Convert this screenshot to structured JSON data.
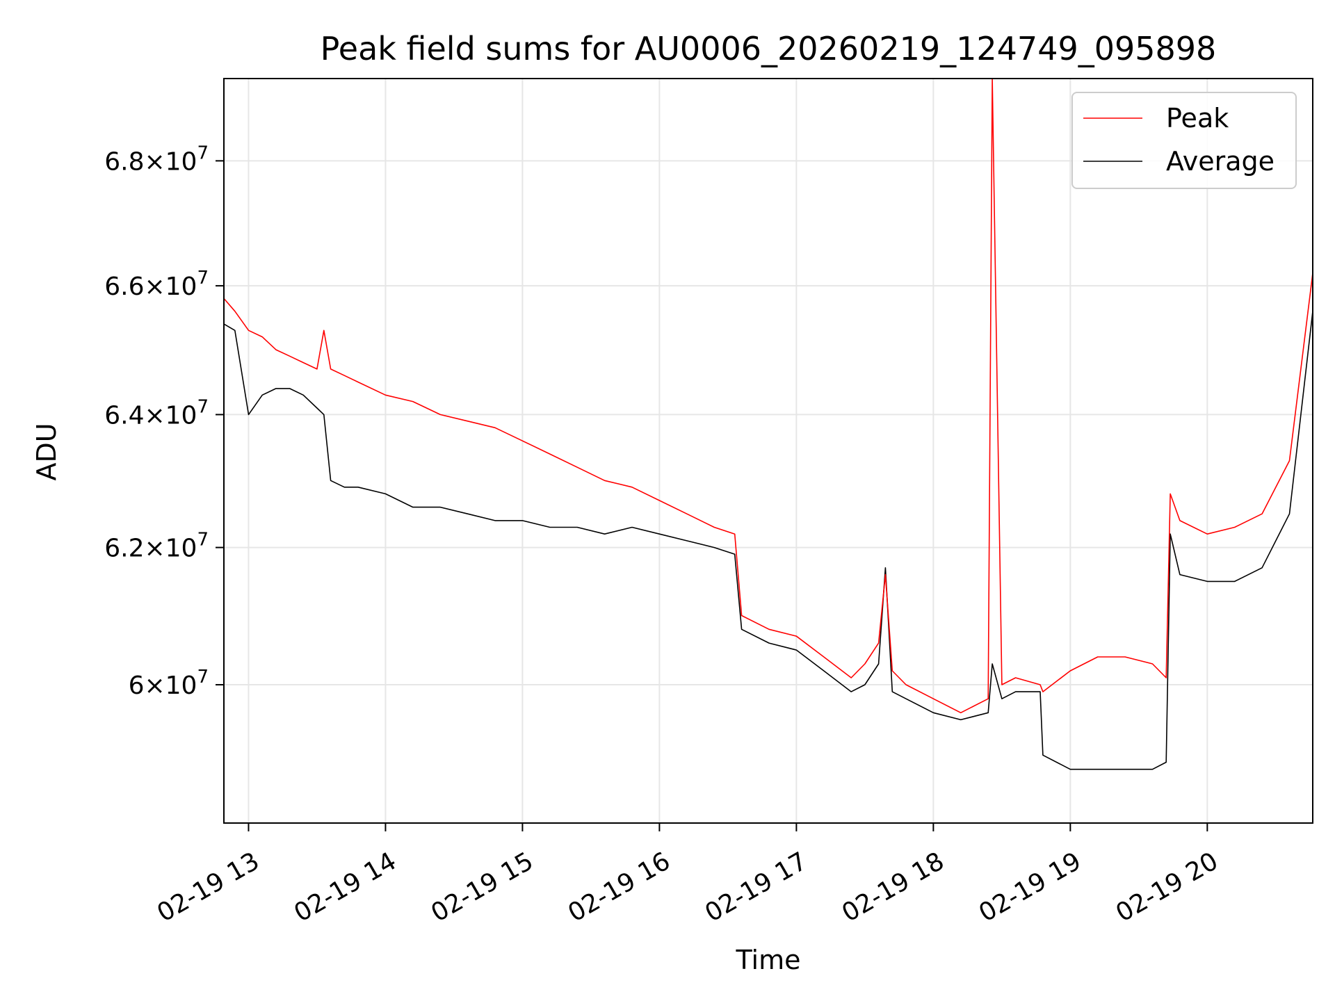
{
  "chart_data": {
    "type": "line",
    "title": "Peak field sums for AU0006_20260219_124749_095898",
    "xlabel": "Time",
    "ylabel": "ADU",
    "xlim": [
      12.82,
      20.77
    ],
    "ylim": [
      58.05,
      69.35
    ],
    "y_scale": "log",
    "grid": true,
    "legend_position": "top-right",
    "xticks": [
      {
        "value": 13,
        "label": "02-19 13"
      },
      {
        "value": 14,
        "label": "02-19 14"
      },
      {
        "value": 15,
        "label": "02-19 15"
      },
      {
        "value": 16,
        "label": "02-19 16"
      },
      {
        "value": 17,
        "label": "02-19 17"
      },
      {
        "value": 18,
        "label": "02-19 18"
      },
      {
        "value": 19,
        "label": "02-19 19"
      },
      {
        "value": 20,
        "label": "02-19 20"
      }
    ],
    "yticks": [
      {
        "value": 60,
        "mantissa": "6",
        "exponent": "7"
      },
      {
        "value": 62,
        "mantissa": "6.2",
        "exponent": "7"
      },
      {
        "value": 64,
        "mantissa": "6.4",
        "exponent": "7"
      },
      {
        "value": 66,
        "mantissa": "6.6",
        "exponent": "7"
      },
      {
        "value": 68,
        "mantissa": "6.8",
        "exponent": "7"
      }
    ],
    "y_units_note": "values in units of 1e6 ADU",
    "series": [
      {
        "name": "Peak",
        "color": "#ff0000",
        "x": [
          12.82,
          12.9,
          13.0,
          13.1,
          13.2,
          13.3,
          13.4,
          13.5,
          13.55,
          13.6,
          13.7,
          13.8,
          14.0,
          14.2,
          14.4,
          14.6,
          14.8,
          15.0,
          15.2,
          15.4,
          15.6,
          15.8,
          16.0,
          16.2,
          16.4,
          16.55,
          16.6,
          16.8,
          17.0,
          17.2,
          17.4,
          17.5,
          17.6,
          17.65,
          17.7,
          17.8,
          18.0,
          18.2,
          18.4,
          18.43,
          18.5,
          18.6,
          18.78,
          18.8,
          19.0,
          19.2,
          19.4,
          19.6,
          19.7,
          19.73,
          19.8,
          20.0,
          20.2,
          20.4,
          20.6,
          20.77
        ],
        "y": [
          65.8,
          65.6,
          65.3,
          65.2,
          65.0,
          64.9,
          64.8,
          64.7,
          65.3,
          64.7,
          64.6,
          64.5,
          64.3,
          64.2,
          64.0,
          63.9,
          63.8,
          63.6,
          63.4,
          63.2,
          63.0,
          62.9,
          62.7,
          62.5,
          62.3,
          62.2,
          61.0,
          60.8,
          60.7,
          60.4,
          60.1,
          60.3,
          60.6,
          61.6,
          60.2,
          60.0,
          59.8,
          59.6,
          59.8,
          69.35,
          60.0,
          60.1,
          60.0,
          59.9,
          60.2,
          60.4,
          60.4,
          60.3,
          60.1,
          62.8,
          62.4,
          62.2,
          62.3,
          62.5,
          63.3,
          66.2
        ]
      },
      {
        "name": "Average",
        "color": "#000000",
        "x": [
          12.82,
          12.9,
          13.0,
          13.1,
          13.2,
          13.3,
          13.4,
          13.5,
          13.55,
          13.6,
          13.7,
          13.8,
          14.0,
          14.2,
          14.4,
          14.6,
          14.8,
          15.0,
          15.2,
          15.4,
          15.6,
          15.8,
          16.0,
          16.2,
          16.4,
          16.55,
          16.6,
          16.8,
          17.0,
          17.2,
          17.4,
          17.5,
          17.6,
          17.65,
          17.7,
          17.8,
          18.0,
          18.2,
          18.4,
          18.43,
          18.5,
          18.6,
          18.78,
          18.8,
          19.0,
          19.2,
          19.4,
          19.6,
          19.7,
          19.73,
          19.8,
          20.0,
          20.2,
          20.4,
          20.6,
          20.77
        ],
        "y": [
          65.4,
          65.3,
          64.0,
          64.3,
          64.4,
          64.4,
          64.3,
          64.1,
          64.0,
          63.0,
          62.9,
          62.9,
          62.8,
          62.6,
          62.6,
          62.5,
          62.4,
          62.4,
          62.3,
          62.3,
          62.2,
          62.3,
          62.2,
          62.1,
          62.0,
          61.9,
          60.8,
          60.6,
          60.5,
          60.2,
          59.9,
          60.0,
          60.3,
          61.7,
          59.9,
          59.8,
          59.6,
          59.5,
          59.6,
          60.3,
          59.8,
          59.9,
          59.9,
          59.0,
          58.8,
          58.8,
          58.8,
          58.8,
          58.9,
          62.2,
          61.6,
          61.5,
          61.5,
          61.7,
          62.5,
          65.6
        ]
      }
    ]
  }
}
